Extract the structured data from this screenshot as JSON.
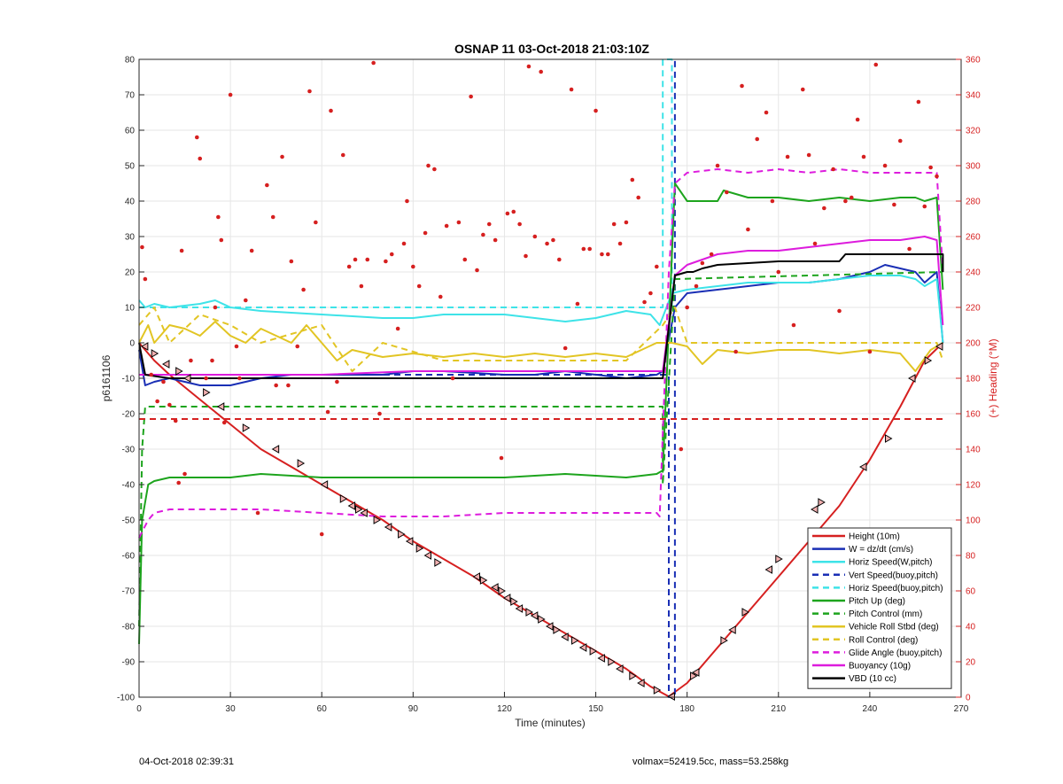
{
  "footer": {
    "left": "04-Oct-2018 02:39:31",
    "right": "volmax=52419.5cc, mass=53.258kg"
  },
  "chart_data": {
    "type": "line",
    "title": "OSNAP 11 03-Oct-2018 21:03:10Z",
    "xlabel": "Time (minutes)",
    "ylabel": "p6161106",
    "y2label": "(+) Heading (°M)",
    "xlim": [
      0,
      270
    ],
    "ylim": [
      -100,
      80
    ],
    "y2lim": [
      0,
      360
    ],
    "xticks": [
      0,
      30,
      60,
      90,
      120,
      150,
      180,
      210,
      240,
      270
    ],
    "yticks": [
      -100,
      -90,
      -80,
      -70,
      -60,
      -50,
      -40,
      -30,
      -20,
      -10,
      0,
      10,
      20,
      30,
      40,
      50,
      60,
      70,
      80
    ],
    "y2ticks": [
      0,
      20,
      40,
      60,
      80,
      100,
      120,
      140,
      160,
      180,
      200,
      220,
      240,
      260,
      280,
      300,
      320,
      340,
      360
    ],
    "grid": true,
    "legend_position": "bottom-right",
    "colors": {
      "red": "#d62020",
      "blue": "#1a2fb5",
      "cyan": "#3ee3e8",
      "navy": "#1a2fb5",
      "green": "#1da41d",
      "yellow": "#e2c524",
      "magenta": "#dd1cdd",
      "black": "#000000"
    },
    "series": [
      {
        "name": "Height (10m)",
        "color": "red",
        "style": "solid",
        "axis": "left",
        "x": [
          0,
          5,
          10,
          20,
          30,
          40,
          50,
          60,
          70,
          80,
          90,
          100,
          110,
          120,
          130,
          140,
          150,
          160,
          168,
          174,
          180,
          190,
          200,
          210,
          220,
          230,
          240,
          250,
          258,
          264
        ],
        "y": [
          0,
          -5,
          -9,
          -16,
          -23,
          -30,
          -35,
          -40,
          -45,
          -50,
          -56,
          -61,
          -66,
          -72,
          -77,
          -82,
          -87,
          -92,
          -97,
          -99.8,
          -96,
          -86,
          -76,
          -66,
          -56,
          -46,
          -33,
          -18,
          -5,
          0
        ]
      },
      {
        "name": "W = dz/dt (cm/s)",
        "color": "blue",
        "style": "solid",
        "axis": "left",
        "x": [
          0,
          2,
          5,
          10,
          20,
          30,
          40,
          50,
          60,
          80,
          90,
          100,
          120,
          130,
          140,
          150,
          160,
          170,
          172,
          176,
          180,
          190,
          200,
          210,
          220,
          230,
          240,
          245,
          250,
          255,
          258,
          262,
          264
        ],
        "y": [
          -2,
          -12,
          -11,
          -10,
          -12,
          -12,
          -10,
          -9,
          -9,
          -9,
          -8,
          -8,
          -9,
          -9,
          -8,
          -9,
          -10,
          -9,
          -8,
          10,
          14,
          15,
          16,
          17,
          17,
          18,
          20,
          22,
          21,
          20,
          17,
          20,
          0
        ]
      },
      {
        "name": "Horiz Speed(W,pitch)",
        "color": "cyan",
        "style": "solid",
        "axis": "left",
        "x": [
          0,
          2,
          5,
          10,
          20,
          25,
          30,
          40,
          60,
          80,
          90,
          100,
          120,
          130,
          140,
          150,
          160,
          168,
          171,
          175,
          180,
          190,
          200,
          210,
          220,
          230,
          240,
          250,
          255,
          258,
          262,
          264
        ],
        "y": [
          12,
          10,
          11,
          10,
          11,
          12,
          10,
          9,
          8,
          7,
          7,
          8,
          8,
          7,
          6,
          7,
          9,
          8,
          5,
          14,
          15,
          16,
          17,
          17,
          17,
          18,
          19,
          19,
          18,
          16,
          18,
          0
        ]
      },
      {
        "name": "Vert Speed(buoy,pitch)",
        "color": "navy",
        "style": "dashed",
        "axis": "left",
        "x": [
          0,
          174,
          174,
          176,
          176
        ],
        "y": [
          -9,
          -9,
          -100,
          -100,
          80
        ]
      },
      {
        "name": "Horiz Speed(buoy,pitch)",
        "color": "cyan",
        "style": "dashed",
        "axis": "left",
        "x": [
          0,
          172,
          172,
          175,
          175
        ],
        "y": [
          10,
          10,
          80,
          80,
          10
        ]
      },
      {
        "name": "Pitch Up (deg)",
        "color": "green",
        "style": "solid",
        "axis": "left",
        "x": [
          0,
          1,
          3,
          5,
          10,
          20,
          30,
          40,
          60,
          80,
          100,
          120,
          140,
          160,
          170,
          172,
          176,
          180,
          190,
          192,
          200,
          210,
          220,
          230,
          240,
          250,
          255,
          258,
          262,
          264
        ],
        "y": [
          -85,
          -50,
          -40,
          -39,
          -38,
          -38,
          -38,
          -37,
          -38,
          -38,
          -38,
          -38,
          -37,
          -38,
          -37,
          -36,
          45,
          40,
          40,
          43,
          41,
          41,
          40,
          41,
          40,
          41,
          41,
          40,
          41,
          15
        ]
      },
      {
        "name": "Pitch Control (mm)",
        "color": "green",
        "style": "dashed",
        "axis": "left",
        "x": [
          0,
          1,
          2,
          172,
          172,
          176,
          264
        ],
        "y": [
          -80,
          -30,
          -18,
          -18,
          -40,
          18,
          20
        ]
      },
      {
        "name": "Vehicle Roll Stbd (deg)",
        "color": "yellow",
        "style": "solid",
        "axis": "left",
        "x": [
          0,
          3,
          5,
          8,
          10,
          15,
          20,
          25,
          30,
          35,
          40,
          50,
          55,
          60,
          65,
          70,
          80,
          90,
          100,
          110,
          120,
          130,
          140,
          150,
          160,
          170,
          175,
          180,
          185,
          190,
          200,
          210,
          220,
          230,
          240,
          250,
          255,
          260,
          264
        ],
        "y": [
          0,
          5,
          0,
          3,
          5,
          4,
          2,
          6,
          2,
          0,
          4,
          0,
          5,
          0,
          -5,
          -2,
          -4,
          -3,
          -4,
          -3,
          -4,
          -3,
          -4,
          -3,
          -4,
          0,
          0,
          -1,
          -6,
          -2,
          -3,
          -2,
          -2,
          -3,
          -2,
          -3,
          -8,
          -2,
          0
        ]
      },
      {
        "name": "Roll Control (deg)",
        "color": "yellow",
        "style": "dashed",
        "axis": "left",
        "x": [
          0,
          5,
          10,
          20,
          30,
          40,
          60,
          70,
          80,
          100,
          120,
          140,
          160,
          172,
          176,
          180,
          190,
          210,
          230,
          250,
          262,
          264
        ],
        "y": [
          5,
          10,
          0,
          8,
          5,
          0,
          5,
          -8,
          0,
          -5,
          -5,
          -5,
          -5,
          5,
          10,
          0,
          0,
          0,
          0,
          0,
          0,
          -5
        ]
      },
      {
        "name": "Glide Angle (buoy,pitch)",
        "color": "magenta",
        "style": "dashed",
        "axis": "left",
        "x": [
          0,
          3,
          5,
          10,
          20,
          30,
          40,
          60,
          80,
          100,
          120,
          140,
          160,
          170,
          171,
          174,
          176,
          180,
          190,
          200,
          210,
          220,
          230,
          240,
          250,
          260,
          262,
          264
        ],
        "y": [
          -55,
          -50,
          -48,
          -47,
          -47,
          -47,
          -47,
          -48,
          -49,
          -49,
          -48,
          -48,
          -48,
          -48,
          -49,
          20,
          45,
          48,
          49,
          48,
          49,
          48,
          49,
          48,
          48,
          48,
          48,
          20
        ]
      },
      {
        "name": "Buoyancy (10g)",
        "color": "magenta",
        "style": "solid",
        "axis": "left",
        "x": [
          0,
          2,
          30,
          60,
          90,
          120,
          150,
          170,
          172,
          176,
          180,
          190,
          200,
          210,
          220,
          230,
          240,
          250,
          258,
          262,
          264
        ],
        "y": [
          -9,
          -9,
          -9,
          -9,
          -8,
          -8,
          -8,
          -8,
          -8,
          19,
          22,
          25,
          26,
          26,
          27,
          28,
          29,
          29,
          30,
          29,
          5
        ]
      },
      {
        "name": "VBD (10 cc)",
        "color": "black",
        "style": "solid",
        "axis": "left",
        "x": [
          0,
          2,
          10,
          60,
          120,
          172,
          172,
          176,
          180,
          182,
          185,
          190,
          210,
          230,
          232,
          264,
          264
        ],
        "y": [
          0,
          -9,
          -10,
          -10,
          -10,
          -10,
          -10,
          19,
          20,
          20,
          21,
          22,
          23,
          23,
          25,
          25,
          20
        ]
      }
    ],
    "heading_dashed_line": {
      "color": "red",
      "style": "dashed",
      "axis": "right",
      "x": [
        0,
        264
      ],
      "y": [
        157,
        157
      ]
    },
    "heading_points": {
      "color": "red",
      "axis": "right",
      "x": [
        1,
        2,
        4,
        6,
        8,
        10,
        12,
        13,
        14,
        15,
        17,
        19,
        20,
        22,
        24,
        25,
        26,
        27,
        28,
        30,
        32,
        33,
        35,
        37,
        39,
        42,
        44,
        45,
        47,
        49,
        50,
        52,
        54,
        56,
        58,
        60,
        62,
        63,
        65,
        67,
        69,
        71,
        73,
        75,
        77,
        79,
        81,
        83,
        85,
        87,
        88,
        90,
        92,
        94,
        95,
        97,
        99,
        101,
        103,
        105,
        107,
        109,
        111,
        113,
        115,
        117,
        119,
        121,
        123,
        125,
        127,
        128,
        130,
        132,
        134,
        136,
        138,
        140,
        142,
        144,
        146,
        148,
        150,
        152,
        154,
        156,
        158,
        160,
        162,
        164,
        166,
        168,
        170,
        178,
        180,
        183,
        185,
        188,
        190,
        193,
        196,
        198,
        200,
        203,
        206,
        208,
        210,
        213,
        215,
        218,
        220,
        222,
        225,
        228,
        230,
        232,
        234,
        236,
        238,
        240,
        242,
        245,
        248,
        250,
        253,
        256,
        258,
        260,
        262
      ],
      "y": [
        254,
        236,
        182,
        167,
        178,
        165,
        156,
        121,
        252,
        126,
        190,
        316,
        304,
        180,
        190,
        220,
        271,
        258,
        155,
        340,
        198,
        180,
        224,
        252,
        104,
        289,
        271,
        176,
        305,
        176,
        246,
        198,
        230,
        342,
        268,
        92,
        161,
        331,
        178,
        306,
        243,
        247,
        232,
        247,
        358,
        160,
        246,
        250,
        208,
        256,
        280,
        243,
        232,
        262,
        300,
        298,
        226,
        266,
        180,
        268,
        247,
        339,
        241,
        261,
        267,
        258,
        135,
        273,
        274,
        267,
        249,
        356,
        260,
        353,
        256,
        258,
        247,
        197,
        343,
        222,
        253,
        253,
        331,
        250,
        250,
        267,
        256,
        268,
        292,
        282,
        223,
        228,
        243,
        140,
        220,
        232,
        245,
        250,
        300,
        285,
        195,
        345,
        264,
        315,
        330,
        280,
        240,
        305,
        210,
        343,
        306,
        256,
        276,
        298,
        218,
        280,
        282,
        326,
        305,
        195,
        357,
        300,
        278,
        314,
        253,
        336,
        277,
        299,
        294
      ]
    },
    "markers": {
      "style": "triangle",
      "axis": "left",
      "x": [
        2,
        5,
        9,
        13,
        16,
        22,
        27,
        35,
        45,
        53,
        61,
        67,
        70,
        72,
        74,
        78,
        82,
        86,
        89,
        92,
        95,
        98,
        111,
        113,
        117,
        119,
        121,
        123,
        125,
        128,
        130,
        132,
        135,
        137,
        140,
        143,
        146,
        149,
        152,
        155,
        158,
        162,
        165,
        170,
        175,
        182,
        183,
        192,
        195,
        199,
        207,
        210,
        222,
        224,
        238,
        246,
        254,
        259,
        263
      ],
      "y": [
        -1,
        -3,
        -6,
        -8,
        -10,
        -14,
        -18,
        -24,
        -30,
        -34,
        -40,
        -44,
        -46,
        -47,
        -48,
        -50,
        -52,
        -54,
        -56,
        -58,
        -60,
        -62,
        -66,
        -67,
        -69,
        -70,
        -72,
        -73,
        -75,
        -76,
        -77,
        -78,
        -80,
        -81,
        -83,
        -84,
        -86,
        -87,
        -89,
        -90,
        -92,
        -94,
        -96,
        -98,
        -99.8,
        -94,
        -93,
        -84,
        -81,
        -76,
        -64,
        -61,
        -47,
        -45,
        -35,
        -27,
        -10,
        -5,
        -1
      ]
    },
    "legend_entries": [
      {
        "label": "Height (10m)",
        "color": "red",
        "style": "solid"
      },
      {
        "label": "W = dz/dt (cm/s)",
        "color": "blue",
        "style": "solid"
      },
      {
        "label": "Horiz Speed(W,pitch)",
        "color": "cyan",
        "style": "solid"
      },
      {
        "label": "Vert Speed(buoy,pitch)",
        "color": "navy",
        "style": "dashed"
      },
      {
        "label": "Horiz Speed(buoy,pitch)",
        "color": "cyan",
        "style": "dashed"
      },
      {
        "label": "Pitch Up (deg)",
        "color": "green",
        "style": "solid"
      },
      {
        "label": "Pitch Control (mm)",
        "color": "green",
        "style": "dashed"
      },
      {
        "label": "Vehicle Roll Stbd (deg)",
        "color": "yellow",
        "style": "solid"
      },
      {
        "label": "Roll Control (deg)",
        "color": "yellow",
        "style": "dashed"
      },
      {
        "label": "Glide Angle (buoy,pitch)",
        "color": "magenta",
        "style": "dashed"
      },
      {
        "label": "Buoyancy (10g)",
        "color": "magenta",
        "style": "solid"
      },
      {
        "label": "VBD (10 cc)",
        "color": "black",
        "style": "solid"
      }
    ]
  }
}
